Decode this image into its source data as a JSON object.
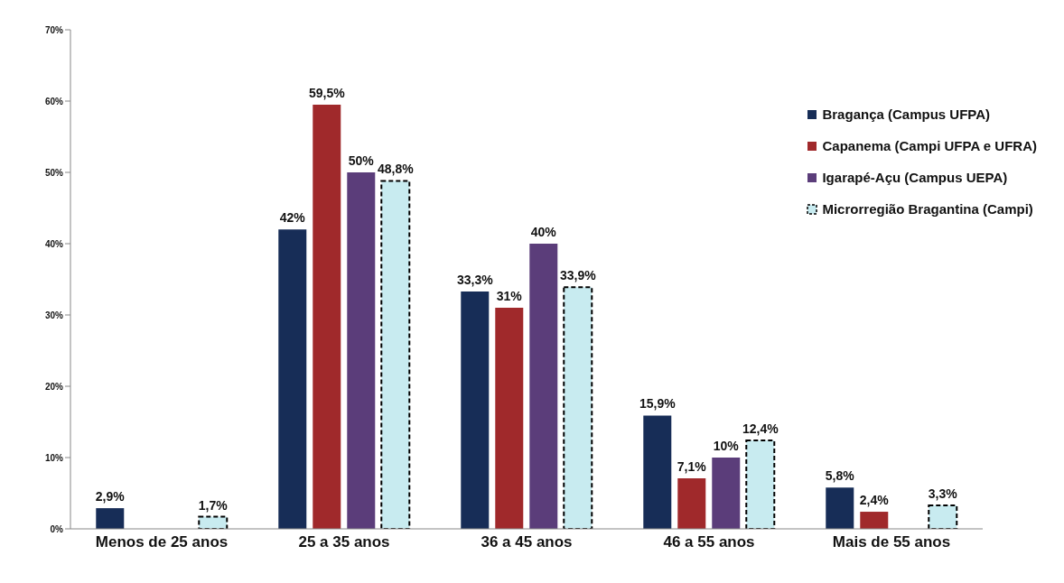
{
  "chart_data": {
    "type": "bar",
    "categories": [
      "Menos de 25 anos",
      "25 a 35 anos",
      "36 a 45 anos",
      "46 a 55 anos",
      "Mais de 55 anos"
    ],
    "series": [
      {
        "name": "Bragança (Campus UFPA)",
        "color": "#172d57",
        "values": [
          2.9,
          42,
          33.3,
          15.9,
          5.8
        ],
        "value_labels": [
          "2,9%",
          "42%",
          "33,3%",
          "15,9%",
          "5,8%"
        ]
      },
      {
        "name": "Capanema (Campi UFPA e UFRA)",
        "color": "#a0292b",
        "values": [
          null,
          59.5,
          31,
          7.1,
          2.4
        ],
        "value_labels": [
          null,
          "59,5%",
          "31%",
          "7,1%",
          "2,4%"
        ]
      },
      {
        "name": "Igarapé-Açu (Campus UEPA)",
        "color": "#5b3d7a",
        "values": [
          null,
          50,
          40,
          10,
          null
        ],
        "value_labels": [
          null,
          "50%",
          "40%",
          "10%",
          null
        ]
      },
      {
        "name": "Microrregião Bragantina (Campi)",
        "color": "#c8ebf0",
        "line_style": "dashed",
        "values": [
          1.7,
          48.8,
          33.9,
          12.4,
          3.3
        ],
        "value_labels": [
          "1,7%",
          "48,8%",
          "33,9%",
          "12,4%",
          "3,3%"
        ]
      }
    ],
    "ylim": [
      0,
      70
    ],
    "yticks": [
      {
        "value": 0,
        "label": "0%"
      },
      {
        "value": 10,
        "label": "10%"
      },
      {
        "value": 20,
        "label": "20%"
      },
      {
        "value": 30,
        "label": "30%"
      },
      {
        "value": 40,
        "label": "40%"
      },
      {
        "value": 50,
        "label": "50%"
      },
      {
        "value": 60,
        "label": "60%"
      },
      {
        "value": 70,
        "label": "70%"
      }
    ],
    "grid": false,
    "legend": "top right"
  }
}
